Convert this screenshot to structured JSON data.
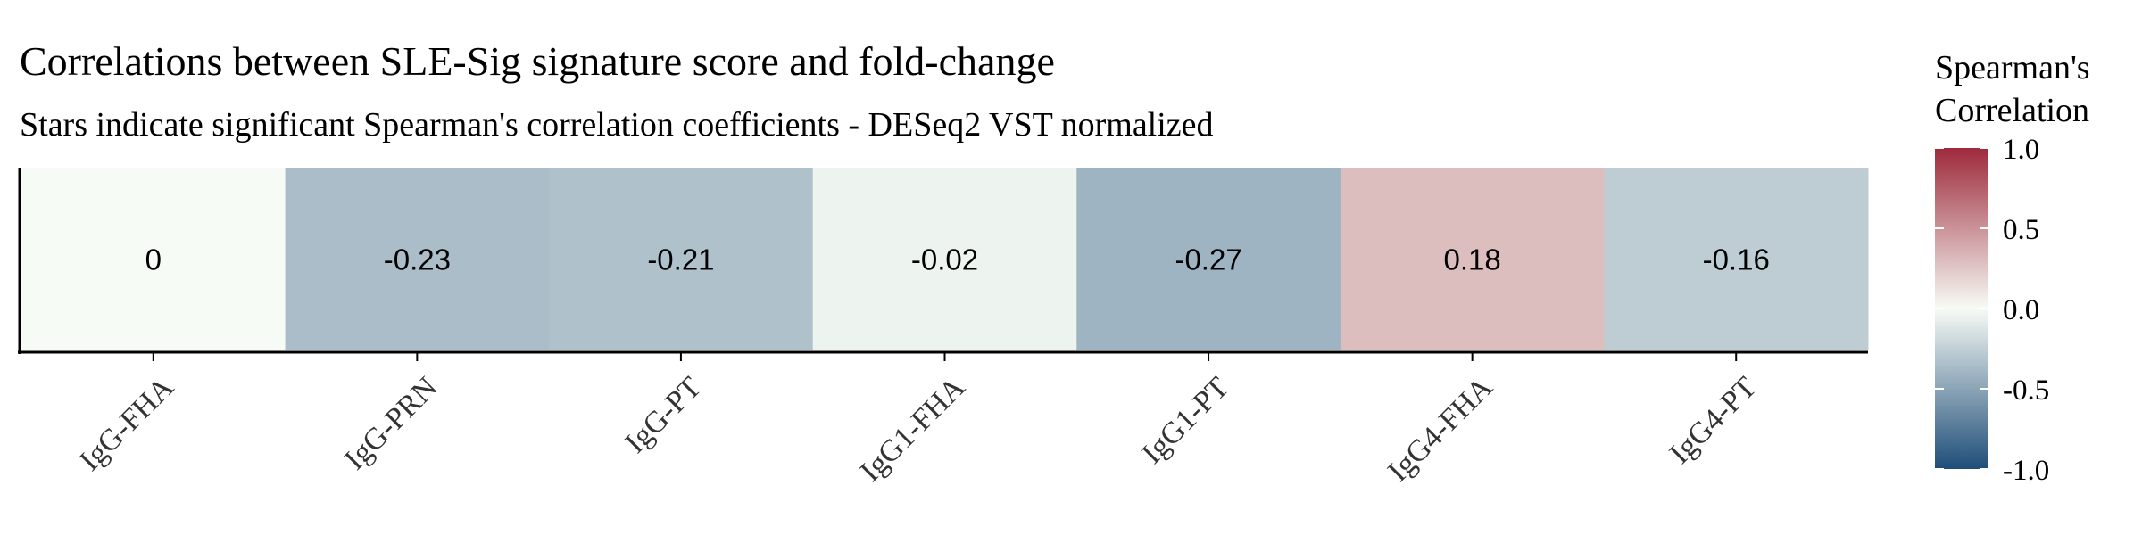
{
  "chart_data": {
    "type": "heatmap",
    "title": "Correlations between SLE-Sig signature score and fold-change",
    "subtitle": "Stars indicate significant Spearman's correlation coefficients - DESeq2 VST normalized",
    "categories": [
      "IgG-FHA",
      "IgG-PRN",
      "IgG-PT",
      "IgG1-FHA",
      "IgG1-PT",
      "IgG4-FHA",
      "IgG4-PT"
    ],
    "values": [
      0,
      -0.23,
      -0.21,
      -0.02,
      -0.27,
      0.18,
      -0.16
    ],
    "value_labels": [
      "0",
      "-0.23",
      "-0.21",
      "-0.02",
      "-0.27",
      "0.18",
      "-0.16"
    ],
    "legend": {
      "title_lines": [
        "Spearman's",
        "Correlation"
      ],
      "ticks": [
        1.0,
        0.5,
        0.0,
        -0.5,
        -1.0
      ],
      "tick_labels": [
        "1.0",
        "0.5",
        "0.0",
        "-0.5",
        "-1.0"
      ],
      "range": [
        -1,
        1
      ],
      "placement": "right"
    },
    "colors": {
      "high": "#9e2a3c",
      "mid": "#f7fbf5",
      "low": "#1f4e79"
    },
    "grid": false
  }
}
